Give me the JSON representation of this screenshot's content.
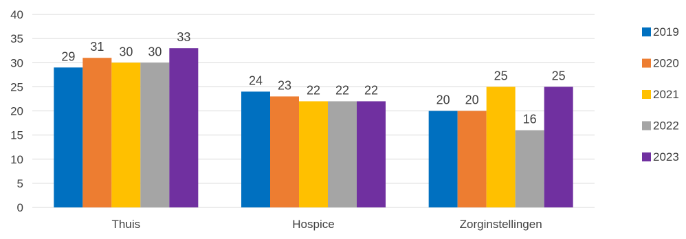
{
  "chart_data": {
    "type": "bar",
    "categories": [
      "Thuis",
      "Hospice",
      "Zorginstellingen"
    ],
    "series": [
      {
        "name": "2019",
        "values": [
          29,
          24,
          20
        ],
        "color": "#0070C0"
      },
      {
        "name": "2020",
        "values": [
          31,
          23,
          20
        ],
        "color": "#ED7D31"
      },
      {
        "name": "2021",
        "values": [
          30,
          22,
          25
        ],
        "color": "#FFC000"
      },
      {
        "name": "2022",
        "values": [
          30,
          22,
          16
        ],
        "color": "#A5A5A5"
      },
      {
        "name": "2023",
        "values": [
          33,
          22,
          25
        ],
        "color": "#7030A0"
      }
    ],
    "yticks": [
      "0",
      "5",
      "10",
      "15",
      "20",
      "25",
      "30",
      "35",
      "40"
    ],
    "ylim": [
      0,
      40
    ],
    "title": "",
    "xlabel": "",
    "ylabel": "",
    "grid": true,
    "data_labels": true,
    "legend_position": "right",
    "colors": {
      "gridline": "#D9D9D9",
      "axis_line": "#D9D9D9",
      "text": "#404040"
    }
  }
}
